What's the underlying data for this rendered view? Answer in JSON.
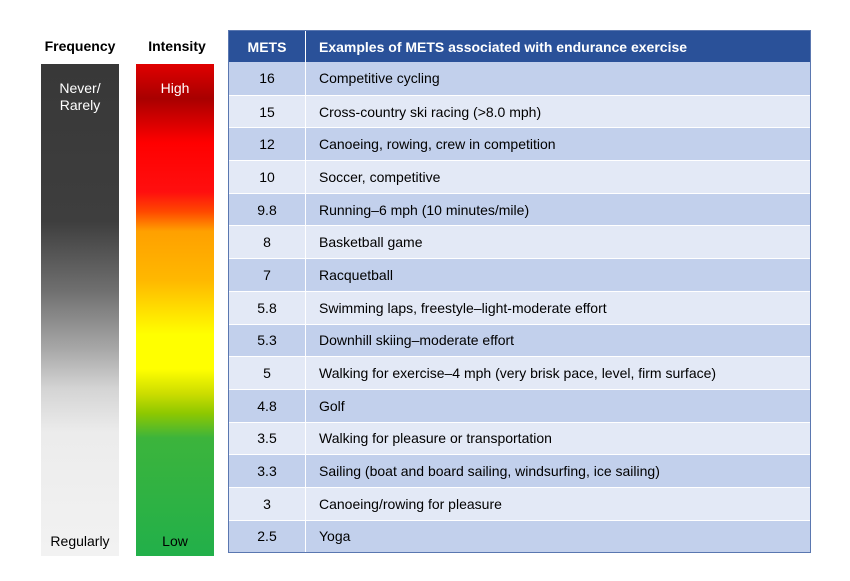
{
  "frequency": {
    "title": "Frequency",
    "top_label": "Never/ Rarely",
    "bottom_label": "Regularly"
  },
  "intensity": {
    "title": "Intensity",
    "top_label": "High",
    "bottom_label": "Low"
  },
  "table": {
    "headers": [
      "METS",
      "Examples of METS associated with endurance exercise"
    ],
    "rows": [
      {
        "mets": "16",
        "example": "Competitive cycling"
      },
      {
        "mets": "15",
        "example": "Cross-country ski racing (>8.0 mph)"
      },
      {
        "mets": "12",
        "example": "Canoeing, rowing, crew in competition"
      },
      {
        "mets": "10",
        "example": "Soccer, competitive"
      },
      {
        "mets": "9.8",
        "example": "Running–6 mph (10 minutes/mile)"
      },
      {
        "mets": "8",
        "example": "Basketball game"
      },
      {
        "mets": "7",
        "example": "Racquetball"
      },
      {
        "mets": "5.8",
        "example": "Swimming laps, freestyle–light-moderate effort"
      },
      {
        "mets": "5.3",
        "example": "Downhill skiing–moderate effort"
      },
      {
        "mets": "5",
        "example": "Walking for exercise–4 mph (very brisk pace, level, firm surface)"
      },
      {
        "mets": "4.8",
        "example": "Golf"
      },
      {
        "mets": "3.5",
        "example": "Walking for pleasure or transportation"
      },
      {
        "mets": "3.3",
        "example": "Sailing (boat and board sailing, windsurfing, ice sailing)"
      },
      {
        "mets": "3",
        "example": "Canoeing/rowing for pleasure"
      },
      {
        "mets": "2.5",
        "example": "Yoga"
      }
    ]
  }
}
